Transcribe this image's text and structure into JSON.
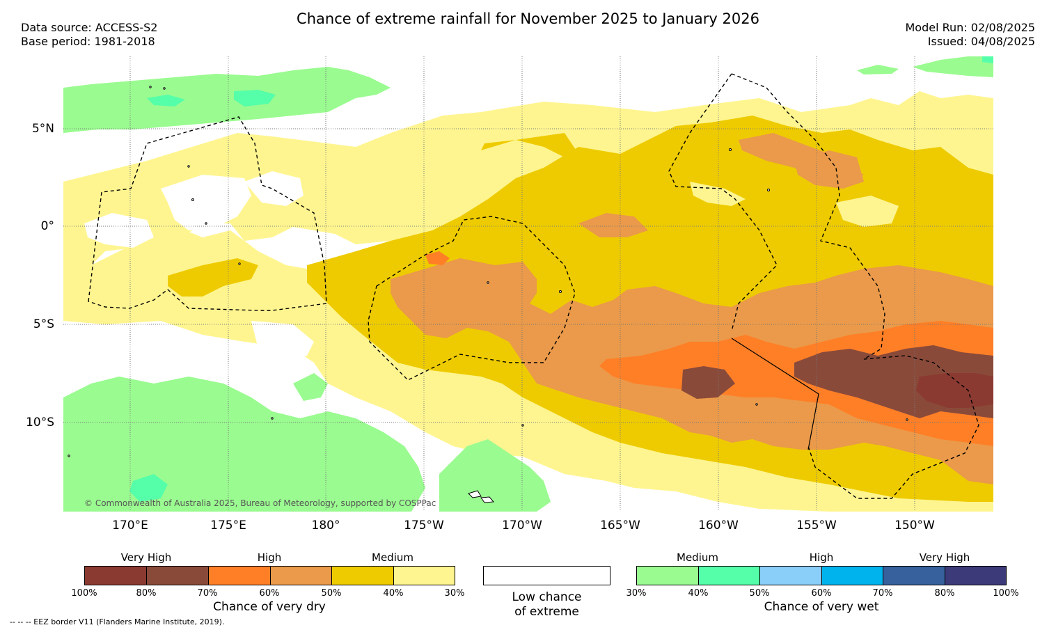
{
  "title": "Chance of extreme rainfall for November 2025 to January 2026",
  "data_source": "Data source: ACCESS-S2",
  "base_period": "Base period: 1981-2018",
  "model_run": "Model Run: 02/08/2025",
  "issued": "Issued: 04/08/2025",
  "lat_labels": [
    "5°N",
    "0°",
    "5°S",
    "10°S"
  ],
  "lon_labels": [
    "170°E",
    "175°E",
    "180°",
    "175°W",
    "170°W",
    "165°W",
    "160°W",
    "155°W",
    "150°W"
  ],
  "copyright": "© Commonwealth of Australia 2025, Bureau of Meteorology, supported by COSPPac",
  "colors": {
    "dry_very_high_100": "#8b3a32",
    "dry_very_high_80": "#8a4a3a",
    "dry_high_70": "#ff7f27",
    "dry_high_60": "#ea9a4a",
    "dry_medium_50": "#eecb00",
    "dry_medium_40": "#fff590",
    "wet_medium_30": "#9afb90",
    "wet_medium_40": "#55ffaa",
    "wet_high_50": "#8acefa",
    "wet_high_60": "#00b3ec",
    "wet_very_high_70": "#36619c",
    "wet_very_high_80": "#3c3a78"
  },
  "legend_dry": {
    "categories": [
      "Very High",
      "High",
      "Medium"
    ],
    "ticks": [
      "100%",
      "80%",
      "70%",
      "60%",
      "50%",
      "40%",
      "30%"
    ],
    "title": "Chance of very dry"
  },
  "legend_low": {
    "title_line1": "Low chance",
    "title_line2": "of extreme"
  },
  "legend_wet": {
    "categories": [
      "Medium",
      "High",
      "Very High"
    ],
    "ticks": [
      "30%",
      "40%",
      "50%",
      "60%",
      "70%",
      "80%",
      "100%"
    ],
    "title": "Chance of very wet"
  },
  "eez_note": "-- -- -- EEZ border V11 (Flanders Marine Institute, 2019)."
}
